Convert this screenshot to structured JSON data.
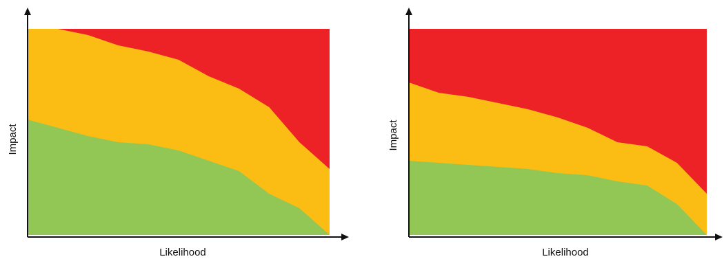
{
  "chart_data": [
    {
      "type": "area",
      "xlabel": "Likelihood",
      "ylabel": "Impact",
      "xlim": [
        0,
        1
      ],
      "ylim": [
        0,
        1
      ],
      "grid": false,
      "legend": "none",
      "x": [
        0,
        0.1,
        0.2,
        0.3,
        0.4,
        0.5,
        0.6,
        0.7,
        0.8,
        0.9,
        1.0
      ],
      "series": [
        {
          "color": "#92c755",
          "values": [
            0.56,
            0.52,
            0.48,
            0.45,
            0.44,
            0.41,
            0.36,
            0.31,
            0.2,
            0.13,
            0.0
          ]
        },
        {
          "color": "#fbbd13",
          "values": [
            1.0,
            1.0,
            0.97,
            0.92,
            0.89,
            0.85,
            0.77,
            0.71,
            0.62,
            0.45,
            0.32
          ]
        },
        {
          "color": "#ec2227",
          "values": [
            1.0,
            1.0,
            1.0,
            1.0,
            1.0,
            1.0,
            1.0,
            1.0,
            1.0,
            1.0,
            1.0
          ]
        }
      ]
    },
    {
      "type": "area",
      "xlabel": "Likelihood",
      "ylabel": "Impact",
      "xlim": [
        0,
        1
      ],
      "ylim": [
        0,
        1
      ],
      "grid": false,
      "legend": "none",
      "x": [
        0,
        0.1,
        0.2,
        0.3,
        0.4,
        0.5,
        0.6,
        0.7,
        0.8,
        0.9,
        1.0
      ],
      "series": [
        {
          "color": "#92c755",
          "values": [
            0.36,
            0.35,
            0.34,
            0.33,
            0.32,
            0.3,
            0.29,
            0.26,
            0.24,
            0.15,
            0.0
          ]
        },
        {
          "color": "#fbbd13",
          "values": [
            0.74,
            0.69,
            0.67,
            0.64,
            0.61,
            0.57,
            0.52,
            0.45,
            0.43,
            0.35,
            0.2
          ]
        },
        {
          "color": "#ec2227",
          "values": [
            1.0,
            1.0,
            1.0,
            1.0,
            1.0,
            1.0,
            1.0,
            1.0,
            1.0,
            1.0,
            1.0
          ]
        }
      ]
    }
  ]
}
